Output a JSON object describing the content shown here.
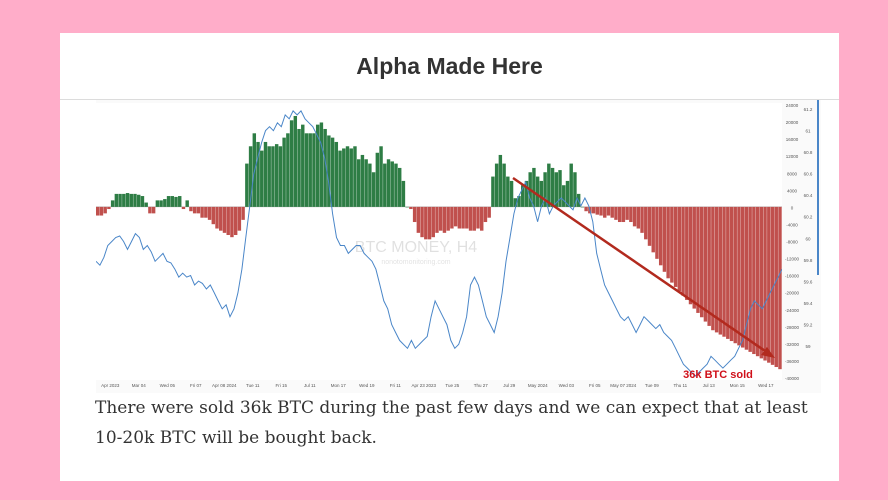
{
  "header": {
    "title": "Alpha Made Here"
  },
  "watermark": {
    "line1": "BTC MONEY, H4",
    "line2": "nonotomonitoring.com"
  },
  "caption": "There were sold 36k BTC during the past few days and we can expect that at least 10-20k BTC will be bought back.",
  "colors": {
    "positive": "#2e7d45",
    "negative": "#c0504d",
    "price_line": "#4a86c8",
    "trend_arrow": "#b22a1e",
    "annotation_text": "#d0101a",
    "page_bg": "#ffadc9"
  },
  "chart_data": {
    "type": "bar",
    "x_ticks": [
      "Apr 2023",
      "Mar 04",
      "Wed 05",
      "Fri 07",
      "Apr 08 2024",
      "Tue 11",
      "Fri 15",
      "Jul 11",
      "Mon 17",
      "Wed 19",
      "Fri 11",
      "Apr 23 2023",
      "Tue 25",
      "Thu 27",
      "Jul 29",
      "May 2024",
      "Wed 03",
      "Fri 05",
      "May 07 2024",
      "Tue 09",
      "Thu 11",
      "Jul 13",
      "Mon 15",
      "Wed 17"
    ],
    "y_ticks_left": [
      "24000",
      "20000",
      "16000",
      "12000",
      "8000",
      "4000",
      "0",
      "-4000",
      "-8000",
      "-12000",
      "-16000",
      "-20000",
      "-24000",
      "-28000",
      "-32000",
      "-36000",
      "-40000"
    ],
    "y_ticks_right": [
      "61.2",
      "61",
      "60.8",
      "60.6",
      "60.4",
      "60.2",
      "60",
      "59.8",
      "59.6",
      "59.4",
      "59.2",
      "59"
    ],
    "ylim": [
      -40000,
      24000
    ],
    "series": [
      {
        "values": [
          -2000,
          -2000,
          -1500,
          -500,
          1500,
          3000,
          3000,
          3000,
          3200,
          3000,
          3000,
          2800,
          2500,
          1000,
          -1500,
          -1500,
          1500,
          1500,
          1800,
          2500,
          2500,
          2300,
          2500,
          -500,
          1500,
          -1000,
          -1500,
          -1500,
          -2500,
          -2500,
          -3000,
          -4000,
          -5000,
          -5500,
          -6000,
          -6500,
          -7000,
          -6500,
          -5500,
          -3000,
          10000,
          14000,
          17000,
          15000,
          13000,
          15000,
          14000,
          14000,
          14500,
          14000,
          16000,
          17000,
          20000,
          21000,
          18000,
          19000,
          17000,
          17000,
          17000,
          19000,
          19500,
          18000,
          16500,
          16000,
          15000,
          13000,
          13500,
          14000,
          13500,
          14000,
          11000,
          12000,
          11000,
          10000,
          8000,
          12500,
          14000,
          10000,
          11000,
          10500,
          10000,
          9000,
          6000,
          0,
          -500,
          -3500,
          -6000,
          -7000,
          -7500,
          -7500,
          -7000,
          -6000,
          -5500,
          -6000,
          -5500,
          -5000,
          -4500,
          -5000,
          -5000,
          -5000,
          -5500,
          -5500,
          -5000,
          -5500,
          -3500,
          -2500,
          7000,
          10000,
          12000,
          10000,
          7000,
          6000,
          2000,
          2500,
          5000,
          6000,
          8000,
          9000,
          7000,
          6000,
          8000,
          10000,
          9000,
          8000,
          8500,
          5000,
          6000,
          10000,
          8000,
          3000,
          0,
          -1000,
          -1500,
          -1500,
          -1800,
          -2000,
          -2500,
          -2000,
          -2500,
          -3000,
          -3500,
          -3500,
          -3000,
          -3500,
          -4500,
          -5000,
          -6000,
          -7500,
          -9000,
          -10500,
          -12000,
          -13500,
          -15000,
          -16500,
          -17500,
          -18500,
          -19500,
          -20500,
          -21500,
          -22500,
          -23500,
          -24500,
          -25500,
          -26500,
          -27500,
          -28500,
          -29000,
          -29500,
          -30000,
          -30500,
          -31000,
          -31500,
          -32000,
          -32500,
          -33000,
          -33500,
          -34000,
          -34500,
          -35000,
          -35500,
          -36000,
          -36500,
          -37000,
          -37500
        ]
      },
      {
        "values": [
          59.3,
          59.25,
          59.35,
          59.5,
          59.55,
          59.6,
          59.62,
          59.55,
          59.45,
          59.55,
          59.65,
          59.6,
          59.45,
          59.5,
          59.42,
          59.3,
          59.35,
          59.4,
          59.3,
          59.28,
          59.2,
          59.1,
          59.15,
          59.1,
          59.12,
          59.0,
          59.05,
          59.02,
          58.95,
          59.0,
          58.9,
          58.8,
          58.7,
          58.75,
          58.6,
          58.7,
          58.9,
          59.2,
          59.6,
          60.0,
          60.4,
          60.6,
          60.8,
          60.95,
          61.0,
          60.95,
          61.05,
          61.0,
          61.15,
          61.1,
          61.2,
          61.15,
          61.2,
          61.1,
          61.05,
          61.0,
          60.9,
          60.8,
          60.6,
          60.3,
          59.9,
          59.6,
          59.5,
          59.5,
          59.4,
          59.45,
          59.5,
          59.5,
          59.4,
          59.35,
          59.3,
          59.2,
          59.0,
          58.8,
          58.7,
          58.5,
          58.4,
          58.3,
          58.25,
          58.2,
          58.3,
          58.2,
          58.25,
          58.3,
          58.35,
          58.6,
          58.8,
          58.7,
          58.6,
          58.5,
          58.3,
          58.2,
          58.25,
          58.4,
          58.6,
          59.0,
          59.1,
          59.0,
          58.8,
          58.6,
          58.5,
          58.4,
          58.6,
          58.9,
          59.3,
          59.6,
          59.9,
          60.1,
          60.2,
          60.3,
          60.1,
          60.0,
          59.8,
          60.0,
          60.1,
          59.9,
          60.0,
          60.05,
          60.1,
          60.05,
          60.0,
          59.95,
          60.1,
          60.0,
          60.1,
          60.0,
          59.8,
          59.4,
          59.2,
          59.0,
          58.9,
          58.8,
          58.7,
          58.6,
          58.55,
          58.6,
          58.5,
          58.4,
          58.5,
          58.6,
          58.55,
          58.5,
          58.45,
          58.5,
          58.4,
          58.35,
          58.3,
          58.2,
          58.1,
          58.0,
          57.95,
          57.9,
          57.85,
          57.9,
          57.95,
          58.0,
          58.1,
          58.05,
          58.0,
          57.95,
          58.0,
          58.05,
          58.1,
          58.2,
          58.3,
          58.5,
          58.7,
          58.8,
          58.75,
          58.7,
          58.8,
          58.9,
          59.0,
          59.1,
          59.2
        ]
      }
    ],
    "annotations": [
      {
        "text": "36k BTC sold"
      }
    ]
  }
}
